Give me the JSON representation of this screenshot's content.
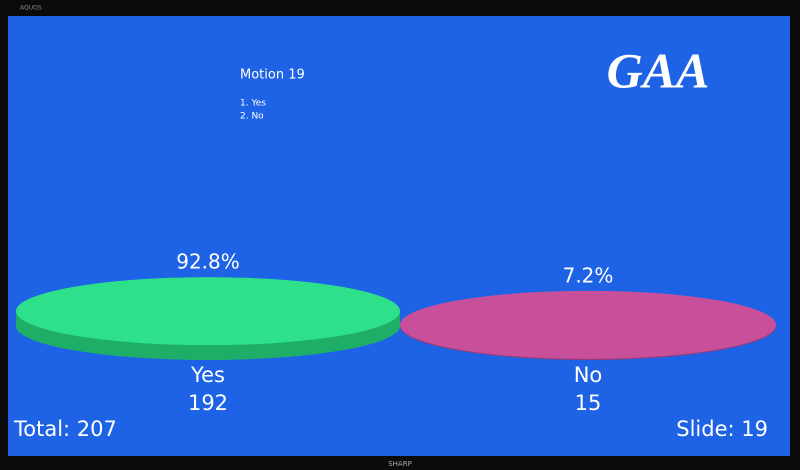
{
  "bezel": {
    "brand_top": "AQUOS",
    "brand_bottom": "SHARP"
  },
  "slide": {
    "title": "Motion 19",
    "options": [
      "1. Yes",
      "2. No"
    ],
    "logo": "GAA",
    "total": "Total: 207",
    "slide_number": "Slide: 19"
  },
  "chart_data": {
    "type": "disc",
    "categories": [
      "Yes",
      "No"
    ],
    "values": [
      92.8,
      7.2
    ],
    "value_labels": [
      "92.8%",
      "7.2%"
    ],
    "counts": [
      192,
      15
    ],
    "colors": [
      "#2ee08a",
      "#c8509a"
    ],
    "side_colors": [
      "#1fae68",
      "#9a3a78"
    ]
  }
}
